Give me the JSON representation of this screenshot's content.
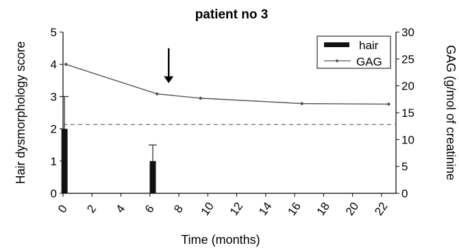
{
  "chart_data": {
    "type": "bar",
    "title": "patient no 3",
    "xlabel": "Time (months)",
    "ylabel_left": "Hair dysmorphology score",
    "ylabel_right": "GAG (g/mol of creatinine",
    "x_ticks": [
      0,
      2,
      4,
      6,
      8,
      10,
      12,
      14,
      16,
      18,
      20,
      22
    ],
    "xlim": [
      0,
      23
    ],
    "ylim_left": [
      0,
      5
    ],
    "yticks_left": [
      0,
      1,
      2,
      3,
      4,
      5
    ],
    "ylim_right": [
      0,
      30
    ],
    "yticks_right": [
      0,
      5,
      10,
      15,
      20,
      25,
      30
    ],
    "legend_position": "top-right",
    "series": [
      {
        "name": "hair",
        "kind": "bar",
        "axis": "left",
        "color": "#111111",
        "x": [
          0.1,
          6.2
        ],
        "values": [
          2,
          1
        ],
        "error_upper": [
          3,
          1.5
        ]
      },
      {
        "name": "GAG",
        "kind": "line",
        "axis": "right",
        "color": "#555555",
        "x": [
          0.2,
          6.5,
          9.5,
          16.5,
          22.5
        ],
        "values": [
          24,
          18.5,
          17.7,
          16.7,
          16.6
        ]
      }
    ],
    "reference_line": {
      "axis": "right",
      "value": 12.8,
      "style": "dashed"
    },
    "arrow": {
      "x": 7.3,
      "y_top": 27,
      "y_bottom": 20.5
    }
  }
}
